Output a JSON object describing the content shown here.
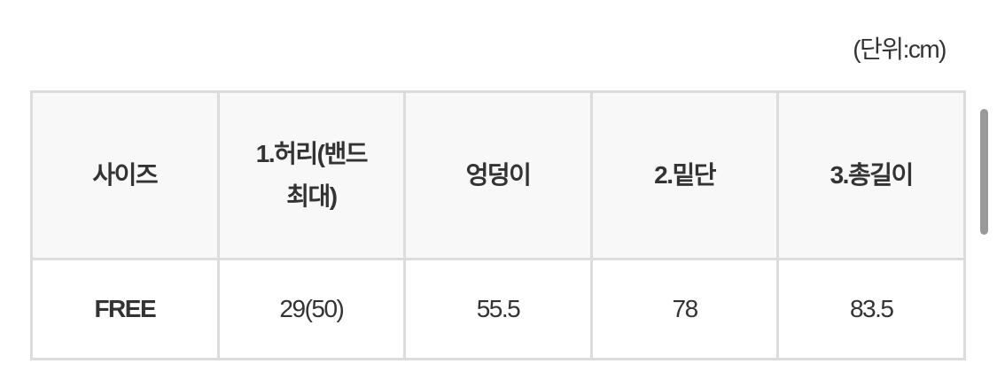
{
  "unit_label": "(단위:cm)",
  "table": {
    "headers": [
      "사이즈",
      "1.허리(밴드 최대)",
      "엉덩이",
      "2.밑단",
      "3.총길이"
    ],
    "rows": [
      [
        "FREE",
        "29(50)",
        "55.5",
        "78",
        "83.5"
      ]
    ]
  }
}
